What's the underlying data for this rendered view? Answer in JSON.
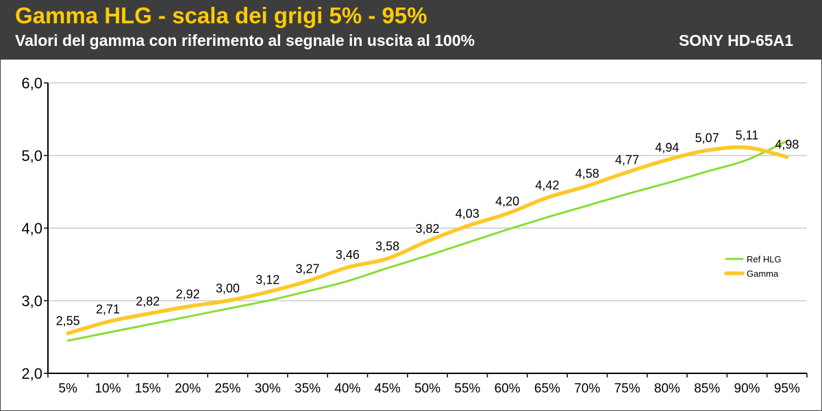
{
  "header": {
    "title": "Gamma HLG - scala dei grigi 5% - 95%",
    "subtitle": "Valori del gamma con riferimento al segnale in uscita al 100%",
    "model": "SONY HD-65A1"
  },
  "colors": {
    "header_bg": "#3d3d3d",
    "title": "#ffcc00",
    "ref_line": "#88dd33",
    "gamma_line": "#ffc82a"
  },
  "chart_data": {
    "type": "line",
    "categories": [
      "5%",
      "10%",
      "15%",
      "20%",
      "25%",
      "30%",
      "35%",
      "40%",
      "45%",
      "50%",
      "55%",
      "60%",
      "65%",
      "70%",
      "75%",
      "80%",
      "85%",
      "90%",
      "95%"
    ],
    "ylim": [
      2.0,
      6.0
    ],
    "yticks": [
      2.0,
      3.0,
      4.0,
      5.0,
      6.0
    ],
    "ytick_labels": [
      "2,0",
      "3,0",
      "4,0",
      "5,0",
      "6,0"
    ],
    "grid": true,
    "legend_position": "right",
    "series": [
      {
        "name": "Ref HLG",
        "color": "#88dd33",
        "values": [
          2.45,
          2.56,
          2.67,
          2.78,
          2.89,
          3.0,
          3.13,
          3.27,
          3.45,
          3.62,
          3.8,
          3.98,
          4.15,
          4.31,
          4.47,
          4.62,
          4.78,
          4.94,
          5.2
        ]
      },
      {
        "name": "Gamma",
        "color": "#ffc82a",
        "values": [
          2.55,
          2.71,
          2.82,
          2.92,
          3.0,
          3.12,
          3.27,
          3.46,
          3.58,
          3.82,
          4.03,
          4.2,
          4.42,
          4.58,
          4.77,
          4.94,
          5.07,
          5.11,
          4.98
        ],
        "labels": [
          "2,55",
          "2,71",
          "2,82",
          "2,92",
          "3,00",
          "3,12",
          "3,27",
          "3,46",
          "3,58",
          "3,82",
          "4,03",
          "4,20",
          "4,42",
          "4,58",
          "4,77",
          "4,94",
          "5,07",
          "5,11",
          "4,98"
        ]
      }
    ]
  }
}
